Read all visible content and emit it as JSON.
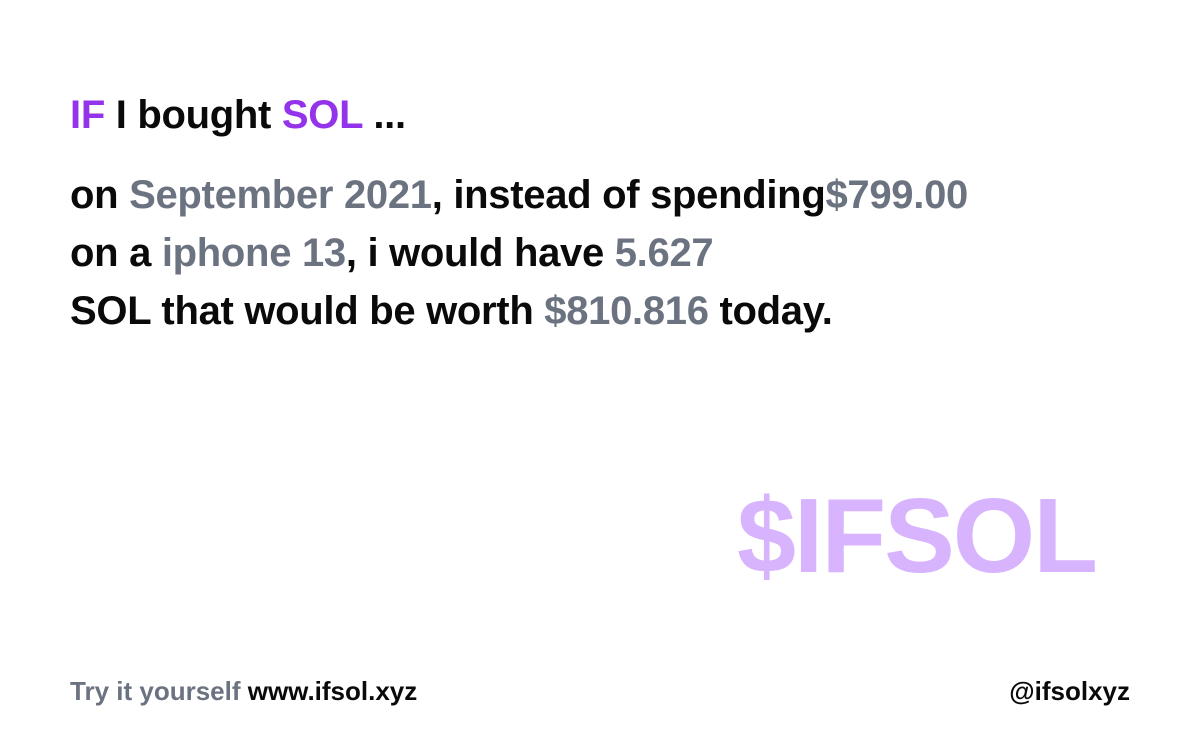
{
  "headline": {
    "if": "IF",
    "i_bought": " I bought ",
    "coin": "SOL",
    "ellipsis": " ..."
  },
  "body": {
    "on": "on ",
    "date": "September 2021",
    "instead": ", instead of spending",
    "price": "$799.00",
    "on_a": "on a ",
    "item": "iphone 13",
    "would_have": ", i would have ",
    "amount": "5.627",
    "sol_worth": "SOL that would be worth ",
    "worth": "$810.816",
    "today": " today."
  },
  "watermark": "$IFSOL",
  "footer": {
    "try": "Try it yourself ",
    "url": "www.ifsol.xyz",
    "handle": "@ifsolxyz"
  },
  "colors": {
    "accent": "#9333ea",
    "muted": "#6b7280",
    "watermark": "#d8b4fe",
    "text": "#0a0a0a",
    "background": "#ffffff"
  }
}
